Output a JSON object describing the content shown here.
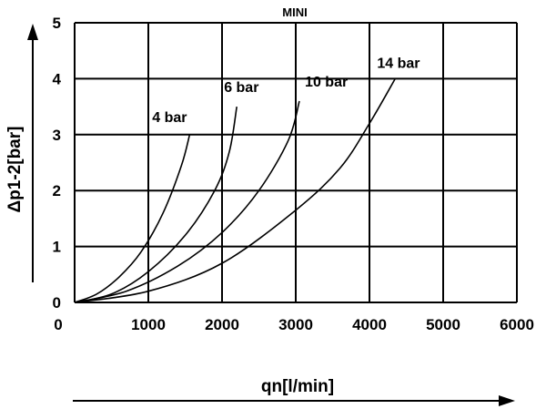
{
  "chart_data": {
    "type": "line",
    "title": "MINI",
    "xlabel": "qn[l/min]",
    "ylabel": "Δp1-2[bar]",
    "xlim": [
      0,
      6000
    ],
    "ylim": [
      0,
      5
    ],
    "xticks": [
      0,
      1000,
      2000,
      3000,
      4000,
      5000,
      6000
    ],
    "yticks": [
      0,
      1,
      2,
      3,
      4,
      5
    ],
    "grid": true,
    "series": [
      {
        "name": "4 bar",
        "x": [
          0,
          300,
          600,
          900,
          1200,
          1450,
          1560
        ],
        "y": [
          0,
          0.15,
          0.45,
          0.9,
          1.6,
          2.45,
          3.0
        ]
      },
      {
        "name": "6 bar",
        "x": [
          0,
          500,
          1000,
          1500,
          1900,
          2100,
          2200
        ],
        "y": [
          0,
          0.15,
          0.55,
          1.2,
          2.0,
          2.7,
          3.5
        ]
      },
      {
        "name": "10 bar",
        "x": [
          0,
          700,
          1400,
          2000,
          2500,
          2900,
          3050
        ],
        "y": [
          0,
          0.2,
          0.65,
          1.25,
          2.0,
          2.9,
          3.6
        ]
      },
      {
        "name": "14 bar",
        "x": [
          0,
          1000,
          2000,
          3000,
          3600,
          4000,
          4350
        ],
        "y": [
          0,
          0.2,
          0.7,
          1.65,
          2.4,
          3.2,
          4.0
        ]
      }
    ]
  }
}
